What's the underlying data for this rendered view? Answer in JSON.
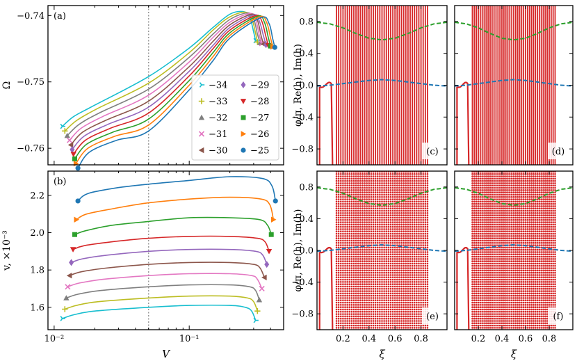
{
  "chart_data": [
    {
      "id": "a",
      "type": "line",
      "panel_label": "(a)",
      "ylabel": "Ω",
      "xscale": "log",
      "xlim": [
        0.009,
        0.5
      ],
      "ylim": [
        -0.7625,
        -0.7385
      ],
      "yticks": [
        {
          "v": -0.74,
          "t": "−0.74"
        },
        {
          "v": -0.75,
          "t": "−0.75"
        },
        {
          "v": -0.76,
          "t": "−0.76"
        }
      ],
      "vline": 0.05,
      "legend": {
        "placement": "bottom-right",
        "entries": [
          "−34",
          "−33",
          "−32",
          "−31",
          "−30",
          "−29",
          "−28",
          "−27",
          "−26",
          "−25"
        ]
      },
      "series": [
        {
          "name": "−34",
          "color": "#17becf",
          "marker": "tri",
          "x": [
            0.0115,
            0.014,
            0.02,
            0.05,
            0.1,
            0.15,
            0.2,
            0.25,
            0.28,
            0.3,
            0.31
          ],
          "y": [
            -0.7567,
            -0.7552,
            -0.7535,
            -0.7492,
            -0.7449,
            -0.7418,
            -0.7398,
            -0.7394,
            -0.7402,
            -0.7425,
            -0.7438
          ]
        },
        {
          "name": "−33",
          "color": "#bcbd22",
          "marker": "plus",
          "x": [
            0.012,
            0.0147,
            0.021,
            0.05,
            0.1,
            0.15,
            0.2,
            0.26,
            0.29,
            0.31,
            0.32
          ],
          "y": [
            -0.7574,
            -0.7558,
            -0.754,
            -0.7502,
            -0.7456,
            -0.7422,
            -0.7402,
            -0.7395,
            -0.7404,
            -0.7427,
            -0.744
          ]
        },
        {
          "name": "−32",
          "color": "#7f7f7f",
          "marker": "tri_up",
          "x": [
            0.0125,
            0.0153,
            0.022,
            0.05,
            0.1,
            0.15,
            0.2,
            0.27,
            0.3,
            0.32,
            0.335
          ],
          "y": [
            -0.7581,
            -0.7564,
            -0.7546,
            -0.7511,
            -0.7463,
            -0.7428,
            -0.7406,
            -0.7396,
            -0.7405,
            -0.7428,
            -0.7441
          ]
        },
        {
          "name": "−31",
          "color": "#e377c2",
          "marker": "x",
          "x": [
            0.013,
            0.0158,
            0.023,
            0.05,
            0.1,
            0.15,
            0.2,
            0.28,
            0.31,
            0.33,
            0.345
          ],
          "y": [
            -0.7588,
            -0.757,
            -0.7552,
            -0.752,
            -0.747,
            -0.7433,
            -0.741,
            -0.7397,
            -0.7406,
            -0.7429,
            -0.7442
          ]
        },
        {
          "name": "−30",
          "color": "#8c564b",
          "marker": "tri_left",
          "x": [
            0.0133,
            0.0162,
            0.024,
            0.05,
            0.1,
            0.15,
            0.2,
            0.29,
            0.32,
            0.34,
            0.355
          ],
          "y": [
            -0.7595,
            -0.7576,
            -0.7558,
            -0.7529,
            -0.7477,
            -0.7439,
            -0.7414,
            -0.7398,
            -0.7407,
            -0.743,
            -0.7443
          ]
        },
        {
          "name": "−29",
          "color": "#9467bd",
          "marker": "diamond",
          "x": [
            0.0136,
            0.0166,
            0.025,
            0.05,
            0.1,
            0.15,
            0.2,
            0.3,
            0.33,
            0.355,
            0.37
          ],
          "y": [
            -0.7602,
            -0.7582,
            -0.7564,
            -0.7538,
            -0.7484,
            -0.7445,
            -0.7418,
            -0.7399,
            -0.7408,
            -0.7431,
            -0.7444
          ]
        },
        {
          "name": "−28",
          "color": "#d62728",
          "marker": "tri_down",
          "x": [
            0.0139,
            0.017,
            0.026,
            0.05,
            0.1,
            0.15,
            0.2,
            0.31,
            0.345,
            0.37,
            0.385
          ],
          "y": [
            -0.7609,
            -0.7588,
            -0.757,
            -0.7547,
            -0.7491,
            -0.745,
            -0.7422,
            -0.74,
            -0.7409,
            -0.7432,
            -0.7445
          ]
        },
        {
          "name": "−27",
          "color": "#2ca02c",
          "marker": "square",
          "x": [
            0.0142,
            0.0174,
            0.027,
            0.05,
            0.1,
            0.15,
            0.2,
            0.32,
            0.36,
            0.385,
            0.4
          ],
          "y": [
            -0.7616,
            -0.7594,
            -0.7576,
            -0.7556,
            -0.7498,
            -0.7456,
            -0.7426,
            -0.7401,
            -0.741,
            -0.7433,
            -0.7446
          ]
        },
        {
          "name": "−26",
          "color": "#ff7f0e",
          "marker": "tri_right",
          "x": [
            0.0145,
            0.0178,
            0.028,
            0.05,
            0.1,
            0.15,
            0.2,
            0.33,
            0.375,
            0.4,
            0.415
          ],
          "y": [
            -0.7623,
            -0.76,
            -0.7582,
            -0.7565,
            -0.7505,
            -0.7462,
            -0.743,
            -0.7402,
            -0.7411,
            -0.7434,
            -0.7447
          ]
        },
        {
          "name": "−25",
          "color": "#1f77b4",
          "marker": "circle",
          "x": [
            0.015,
            0.0182,
            0.029,
            0.05,
            0.1,
            0.15,
            0.2,
            0.34,
            0.39,
            0.415,
            0.43
          ],
          "y": [
            -0.763,
            -0.7606,
            -0.7588,
            -0.7574,
            -0.7512,
            -0.7468,
            -0.7434,
            -0.7403,
            -0.7412,
            -0.7435,
            -0.7448
          ]
        }
      ]
    },
    {
      "id": "b",
      "type": "line",
      "panel_label": "(b)",
      "xlabel": "V",
      "ylabel": "v, ×10⁻³",
      "xscale": "log",
      "xlim": [
        0.009,
        0.5
      ],
      "ylim": [
        1.48,
        2.33
      ],
      "xticks": [
        {
          "v": 0.01,
          "t": "10⁻²"
        },
        {
          "v": 0.1,
          "t": "10⁻¹"
        }
      ],
      "yticks": [
        {
          "v": 1.6,
          "t": "1.6"
        },
        {
          "v": 1.8,
          "t": "1.8"
        },
        {
          "v": 2.0,
          "t": "2.0"
        },
        {
          "v": 2.2,
          "t": "2.2"
        }
      ],
      "vline": 0.05,
      "series": [
        {
          "name": "−34",
          "color": "#17becf",
          "marker": "tri",
          "x": [
            0.0115,
            0.014,
            0.02,
            0.05,
            0.1,
            0.2,
            0.26,
            0.29,
            0.31
          ],
          "y": [
            1.54,
            1.56,
            1.58,
            1.6,
            1.61,
            1.61,
            1.6,
            1.58,
            1.53
          ]
        },
        {
          "name": "−33",
          "color": "#bcbd22",
          "marker": "plus",
          "x": [
            0.012,
            0.0146,
            0.021,
            0.05,
            0.1,
            0.2,
            0.27,
            0.3,
            0.32
          ],
          "y": [
            1.59,
            1.61,
            1.63,
            1.65,
            1.66,
            1.66,
            1.65,
            1.63,
            1.58
          ]
        },
        {
          "name": "−32",
          "color": "#7f7f7f",
          "marker": "tri_up",
          "x": [
            0.0123,
            0.015,
            0.022,
            0.05,
            0.1,
            0.2,
            0.28,
            0.31,
            0.33
          ],
          "y": [
            1.65,
            1.67,
            1.69,
            1.71,
            1.72,
            1.72,
            1.71,
            1.69,
            1.64
          ]
        },
        {
          "name": "−31",
          "color": "#e377c2",
          "marker": "x",
          "x": [
            0.0126,
            0.0154,
            0.023,
            0.05,
            0.1,
            0.2,
            0.29,
            0.32,
            0.345
          ],
          "y": [
            1.71,
            1.73,
            1.75,
            1.77,
            1.78,
            1.78,
            1.77,
            1.75,
            1.7
          ]
        },
        {
          "name": "−30",
          "color": "#8c564b",
          "marker": "tri_left",
          "x": [
            0.013,
            0.0158,
            0.024,
            0.05,
            0.1,
            0.2,
            0.3,
            0.335,
            0.36
          ],
          "y": [
            1.77,
            1.79,
            1.81,
            1.83,
            1.84,
            1.84,
            1.83,
            1.81,
            1.76
          ]
        },
        {
          "name": "−29",
          "color": "#9467bd",
          "marker": "diamond",
          "x": [
            0.0134,
            0.0162,
            0.025,
            0.05,
            0.1,
            0.2,
            0.31,
            0.35,
            0.375
          ],
          "y": [
            1.84,
            1.86,
            1.88,
            1.9,
            1.91,
            1.91,
            1.9,
            1.88,
            1.83
          ]
        },
        {
          "name": "−28",
          "color": "#d62728",
          "marker": "tri_down",
          "x": [
            0.0138,
            0.0166,
            0.026,
            0.05,
            0.1,
            0.2,
            0.32,
            0.365,
            0.39
          ],
          "y": [
            1.91,
            1.93,
            1.95,
            1.97,
            1.98,
            1.98,
            1.97,
            1.95,
            1.9
          ]
        },
        {
          "name": "−27",
          "color": "#2ca02c",
          "marker": "square",
          "x": [
            0.0142,
            0.017,
            0.027,
            0.05,
            0.1,
            0.2,
            0.33,
            0.38,
            0.405
          ],
          "y": [
            1.99,
            2.01,
            2.04,
            2.06,
            2.08,
            2.08,
            2.07,
            2.04,
            1.99
          ]
        },
        {
          "name": "−26",
          "color": "#ff7f0e",
          "marker": "tri_right",
          "x": [
            0.0146,
            0.0174,
            0.028,
            0.05,
            0.1,
            0.2,
            0.34,
            0.395,
            0.42
          ],
          "y": [
            2.07,
            2.1,
            2.13,
            2.16,
            2.18,
            2.19,
            2.18,
            2.15,
            2.07
          ]
        },
        {
          "name": "−25",
          "color": "#1f77b4",
          "marker": "circle",
          "x": [
            0.015,
            0.0178,
            0.029,
            0.05,
            0.1,
            0.2,
            0.35,
            0.41,
            0.435
          ],
          "y": [
            2.17,
            2.21,
            2.24,
            2.26,
            2.28,
            2.3,
            2.29,
            2.25,
            2.17
          ]
        }
      ]
    }
  ],
  "profile_panels": {
    "xlabel": "ξ",
    "ylabel": "φ/π,  Re(h),  Im(h)",
    "xlim": [
      0,
      1
    ],
    "ylim": [
      -1,
      1
    ],
    "xticks": [
      {
        "v": 0.2,
        "t": "0.2"
      },
      {
        "v": 0.4,
        "t": "0.4"
      },
      {
        "v": 0.6,
        "t": "0.6"
      },
      {
        "v": 0.8,
        "t": "0.8"
      }
    ],
    "yticks": [
      {
        "v": 0.8,
        "t": "0.8"
      },
      {
        "v": 0.4,
        "t": "0.4"
      },
      {
        "v": 0.0,
        "t": "0.0"
      },
      {
        "v": -0.4,
        "t": "−0.4"
      },
      {
        "v": -0.8,
        "t": "−0.8"
      }
    ],
    "phase_color": "#d62728",
    "re_color": "#2ca02c",
    "im_color": "#1f77b4",
    "re_curve": {
      "x": [
        0,
        0.1,
        0.2,
        0.3,
        0.4,
        0.5,
        0.6,
        0.7,
        0.8,
        0.9,
        1.0
      ],
      "y": [
        0.79,
        0.77,
        0.72,
        0.65,
        0.59,
        0.57,
        0.59,
        0.65,
        0.72,
        0.77,
        0.79
      ]
    },
    "im_curve": {
      "x": [
        0,
        0.1,
        0.2,
        0.3,
        0.4,
        0.5,
        0.6,
        0.7,
        0.8,
        0.9,
        1.0
      ],
      "y": [
        -0.01,
        0.0,
        0.02,
        0.04,
        0.06,
        0.07,
        0.06,
        0.04,
        0.02,
        0.0,
        -0.01
      ]
    },
    "panels": [
      {
        "label": "(c)",
        "phase": {
          "x_start": 0.15,
          "x_end": 0.85,
          "n_branches": 42,
          "style": "lines"
        }
      },
      {
        "label": "(d)",
        "phase": {
          "x_start": 0.15,
          "x_end": 0.85,
          "n_branches": 42,
          "style": "lines"
        }
      },
      {
        "label": "(e)",
        "phase": {
          "x_start": 0.15,
          "x_end": 0.85,
          "n_branches": 42,
          "style": "dense"
        }
      },
      {
        "label": "(f)",
        "phase": {
          "x_start": 0.15,
          "x_end": 0.85,
          "n_branches": 42,
          "style": "dense"
        }
      }
    ]
  }
}
